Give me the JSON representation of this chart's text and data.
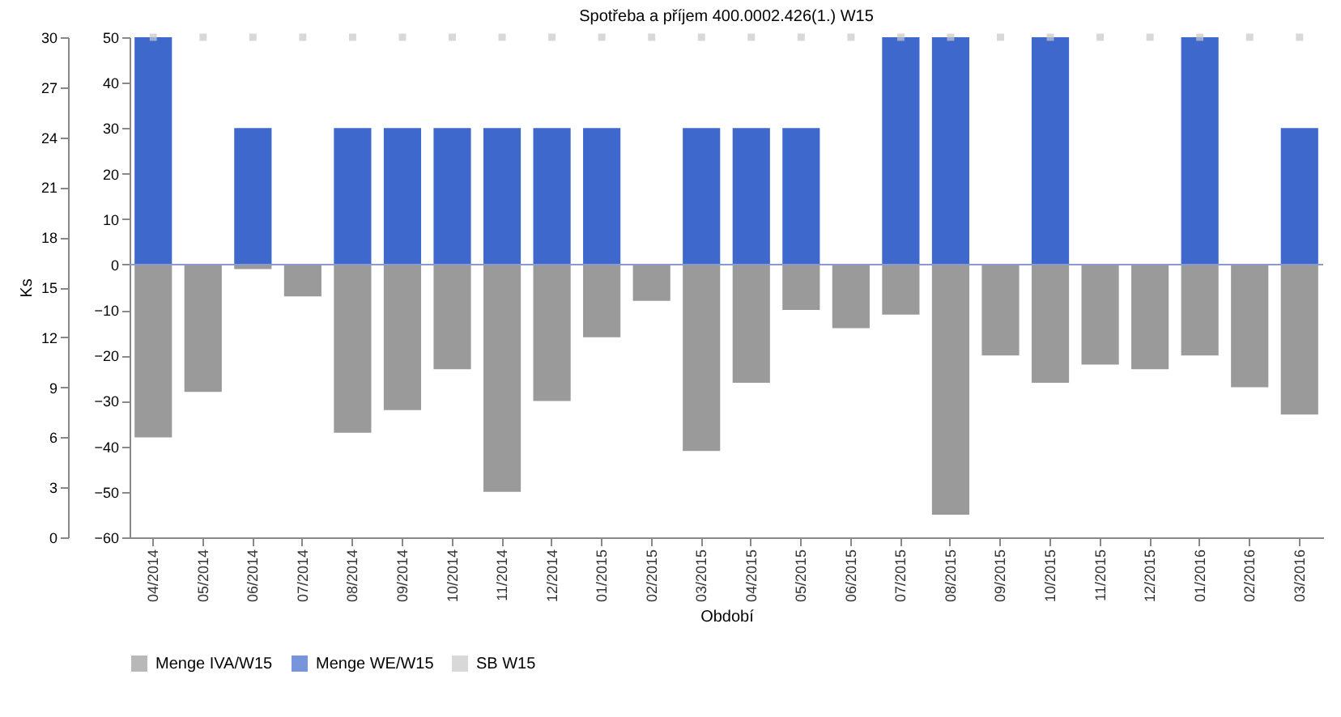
{
  "chart_data": {
    "type": "bar",
    "title": "Spotřeba a příjem 400.0002.426(1.) W15",
    "xlabel": "Období",
    "y2label": "Ks",
    "categories": [
      "04/2014",
      "05/2014",
      "06/2014",
      "07/2014",
      "08/2014",
      "09/2014",
      "10/2014",
      "11/2014",
      "12/2014",
      "01/2015",
      "02/2015",
      "03/2015",
      "04/2015",
      "05/2015",
      "06/2015",
      "07/2015",
      "08/2015",
      "09/2015",
      "10/2015",
      "11/2015",
      "12/2015",
      "01/2016",
      "02/2016",
      "03/2016"
    ],
    "stacked": true,
    "series": [
      {
        "name": "Menge IVA/W15",
        "color": "#9a9a9a",
        "values": [
          -38,
          -28,
          -1,
          -7,
          -37,
          -32,
          -23,
          -50,
          -30,
          -16,
          -8,
          -41,
          -26,
          -10,
          -14,
          -11,
          -55,
          -20,
          -26,
          -22,
          -23,
          -20,
          -27,
          -33
        ]
      },
      {
        "name": "Menge WE/W15",
        "color": "#3f68cc",
        "values": [
          50,
          null,
          30,
          null,
          30,
          30,
          30,
          30,
          30,
          30,
          null,
          30,
          30,
          30,
          null,
          50,
          50,
          null,
          50,
          null,
          null,
          50,
          null,
          30
        ]
      },
      {
        "name": "SB W15",
        "type": "scatter",
        "axis": "y2",
        "color": "#c8c8c8",
        "values": [
          30,
          30,
          30,
          30,
          30,
          30,
          30,
          30,
          30,
          30,
          30,
          30,
          30,
          30,
          30,
          30,
          30,
          30,
          30,
          30,
          30,
          30,
          30,
          30
        ]
      }
    ],
    "ylim": [
      -60,
      50
    ],
    "yticks": [
      -60,
      -50,
      -40,
      -30,
      -20,
      -10,
      0,
      10,
      20,
      30,
      40,
      50
    ],
    "y2lim": [
      0,
      30
    ],
    "y2ticks": [
      0,
      3,
      6,
      9,
      12,
      15,
      18,
      21,
      24,
      27,
      30
    ],
    "ref_lines": [
      {
        "axis": "y",
        "value": 0,
        "color": "#8a9ad0"
      }
    ],
    "grid": false,
    "legend": "bottom",
    "marker": "square"
  }
}
